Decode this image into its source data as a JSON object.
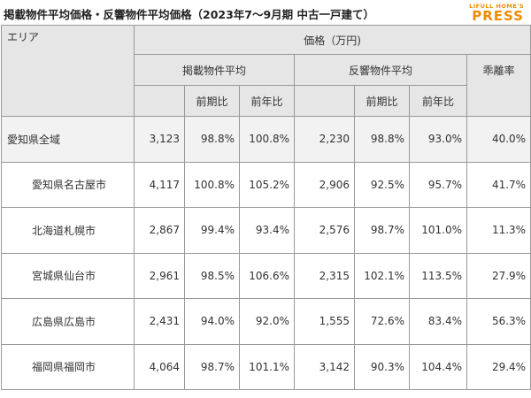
{
  "header": {
    "title": "掲載物件平均価格・反響物件平均価格（2023年7～9月期 中古一戸建て）",
    "logo_top": "LIFULL HOME'S",
    "logo_main": "PRESS",
    "brand_color": "#f08c00"
  },
  "table": {
    "col_area": "エリア",
    "col_price": "価格（万円)",
    "group_listing": "掲載物件平均",
    "group_response": "反響物件平均",
    "col_gap": "乖離率",
    "sub_prev_period": "前期比",
    "sub_prev_year": "前年比",
    "rows": [
      {
        "area": "愛知県全域",
        "listing_avg": "3,123",
        "listing_prev_period": "98.8%",
        "listing_prev_year": "100.8%",
        "response_avg": "2,230",
        "response_prev_period": "98.8%",
        "response_prev_year": "93.0%",
        "gap": "40.0%"
      },
      {
        "area": "愛知県名古屋市",
        "listing_avg": "4,117",
        "listing_prev_period": "100.8%",
        "listing_prev_year": "105.2%",
        "response_avg": "2,906",
        "response_prev_period": "92.5%",
        "response_prev_year": "95.7%",
        "gap": "41.7%"
      },
      {
        "area": "北海道札幌市",
        "listing_avg": "2,867",
        "listing_prev_period": "99.4%",
        "listing_prev_year": "93.4%",
        "response_avg": "2,576",
        "response_prev_period": "98.7%",
        "response_prev_year": "101.0%",
        "gap": "11.3%"
      },
      {
        "area": "宮城県仙台市",
        "listing_avg": "2,961",
        "listing_prev_period": "98.5%",
        "listing_prev_year": "106.6%",
        "response_avg": "2,315",
        "response_prev_period": "102.1%",
        "response_prev_year": "113.5%",
        "gap": "27.9%"
      },
      {
        "area": "広島県広島市",
        "listing_avg": "2,431",
        "listing_prev_period": "94.0%",
        "listing_prev_year": "92.0%",
        "response_avg": "1,555",
        "response_prev_period": "72.6%",
        "response_prev_year": "83.4%",
        "gap": "56.3%"
      },
      {
        "area": "福岡県福岡市",
        "listing_avg": "4,064",
        "listing_prev_period": "98.7%",
        "listing_prev_year": "101.1%",
        "response_avg": "3,142",
        "response_prev_period": "90.3%",
        "response_prev_year": "104.4%",
        "gap": "29.4%"
      }
    ]
  }
}
